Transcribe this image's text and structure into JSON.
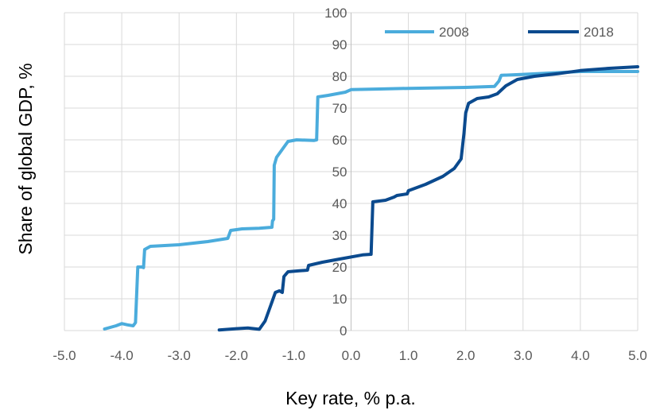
{
  "chart_data": {
    "type": "line",
    "title": "",
    "xlabel": "Key rate, % p.a.",
    "ylabel": "Share of global GDP, %",
    "xlim": [
      -5.0,
      5.0
    ],
    "ylim": [
      0,
      100
    ],
    "x_ticks": [
      "-5.0",
      "-4.0",
      "-3.0",
      "-2.0",
      "-1.0",
      "0.0",
      "1.0",
      "2.0",
      "3.0",
      "4.0",
      "5.0"
    ],
    "y_ticks": [
      "0",
      "10",
      "20",
      "30",
      "40",
      "50",
      "60",
      "70",
      "80",
      "90",
      "100"
    ],
    "grid": true,
    "legend_position": "top-right",
    "series": [
      {
        "name": "2008",
        "color": "#4bacdc",
        "points": [
          [
            -4.3,
            0.5
          ],
          [
            -4.1,
            1.5
          ],
          [
            -4.0,
            2.2
          ],
          [
            -3.9,
            1.8
          ],
          [
            -3.8,
            1.5
          ],
          [
            -3.76,
            2.5
          ],
          [
            -3.72,
            20.0
          ],
          [
            -3.65,
            20.0
          ],
          [
            -3.62,
            19.8
          ],
          [
            -3.6,
            25.5
          ],
          [
            -3.5,
            26.5
          ],
          [
            -3.0,
            27.0
          ],
          [
            -2.5,
            28.0
          ],
          [
            -2.15,
            29.0
          ],
          [
            -2.1,
            31.5
          ],
          [
            -1.9,
            32.0
          ],
          [
            -1.6,
            32.2
          ],
          [
            -1.38,
            32.5
          ],
          [
            -1.37,
            34.5
          ],
          [
            -1.35,
            35.0
          ],
          [
            -1.34,
            52.0
          ],
          [
            -1.3,
            54.5
          ],
          [
            -1.2,
            57.0
          ],
          [
            -1.1,
            59.5
          ],
          [
            -0.95,
            60.0
          ],
          [
            -0.65,
            59.8
          ],
          [
            -0.6,
            60.0
          ],
          [
            -0.58,
            73.5
          ],
          [
            -0.4,
            74.0
          ],
          [
            -0.1,
            75.0
          ],
          [
            0.0,
            75.8
          ],
          [
            0.5,
            76.0
          ],
          [
            1.0,
            76.2
          ],
          [
            2.0,
            76.5
          ],
          [
            2.5,
            76.8
          ],
          [
            2.58,
            78.5
          ],
          [
            2.62,
            80.3
          ],
          [
            3.0,
            80.6
          ],
          [
            4.0,
            81.5
          ],
          [
            5.0,
            81.5
          ]
        ]
      },
      {
        "name": "2018",
        "color": "#0b4a8e",
        "points": [
          [
            -2.3,
            0.2
          ],
          [
            -2.0,
            0.6
          ],
          [
            -1.8,
            0.8
          ],
          [
            -1.6,
            0.4
          ],
          [
            -1.5,
            3.0
          ],
          [
            -1.4,
            8.0
          ],
          [
            -1.32,
            12.0
          ],
          [
            -1.25,
            12.5
          ],
          [
            -1.2,
            12.0
          ],
          [
            -1.17,
            17.0
          ],
          [
            -1.1,
            18.5
          ],
          [
            -0.9,
            18.8
          ],
          [
            -0.76,
            19.0
          ],
          [
            -0.74,
            20.5
          ],
          [
            -0.5,
            21.5
          ],
          [
            -0.2,
            22.5
          ],
          [
            0.2,
            23.8
          ],
          [
            0.35,
            24.0
          ],
          [
            0.38,
            40.5
          ],
          [
            0.6,
            41.0
          ],
          [
            0.75,
            42.0
          ],
          [
            0.8,
            42.5
          ],
          [
            0.98,
            43.0
          ],
          [
            1.0,
            44.0
          ],
          [
            1.3,
            46.0
          ],
          [
            1.6,
            48.5
          ],
          [
            1.8,
            51.0
          ],
          [
            1.92,
            54.0
          ],
          [
            1.97,
            62.0
          ],
          [
            2.0,
            68.5
          ],
          [
            2.05,
            71.5
          ],
          [
            2.2,
            73.0
          ],
          [
            2.4,
            73.5
          ],
          [
            2.55,
            74.5
          ],
          [
            2.7,
            77.0
          ],
          [
            2.9,
            79.0
          ],
          [
            3.2,
            80.0
          ],
          [
            3.6,
            80.8
          ],
          [
            4.0,
            81.8
          ],
          [
            4.5,
            82.5
          ],
          [
            5.0,
            83.0
          ]
        ]
      }
    ]
  }
}
